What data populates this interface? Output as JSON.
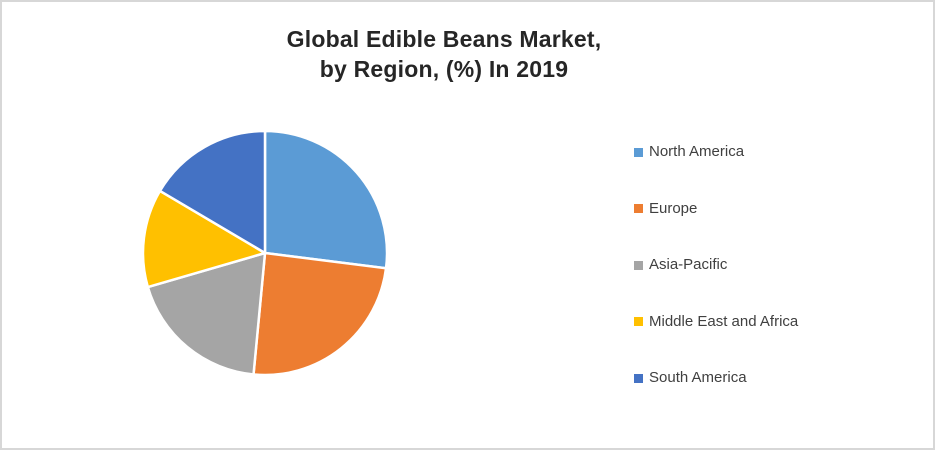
{
  "chart_data": {
    "type": "pie",
    "title": "Global Edible Beans Market, by Region, (%) In 2019",
    "title_lines": [
      "Global Edible Beans Market,",
      "by Region, (%) In 2019"
    ],
    "unit": "%",
    "year": "2019",
    "start_angle_deg": 0,
    "direction": "clockwise",
    "legend_position": "right",
    "grid": false,
    "data_labels": false,
    "categories": [
      "North America",
      "Europe",
      "Asia-Pacific",
      "Middle East and Africa",
      "South America"
    ],
    "values": [
      27,
      24.5,
      19,
      13,
      16.5
    ],
    "colors": [
      "#5B9BD5",
      "#ED7D31",
      "#A5A5A5",
      "#FFC000",
      "#4472C4"
    ]
  },
  "colors": {
    "background": "#FFFFFF",
    "frame_border": "#D7D7D7",
    "title_text": "#262626",
    "legend_text": "#404040",
    "slice_gap": "#FFFFFF"
  }
}
